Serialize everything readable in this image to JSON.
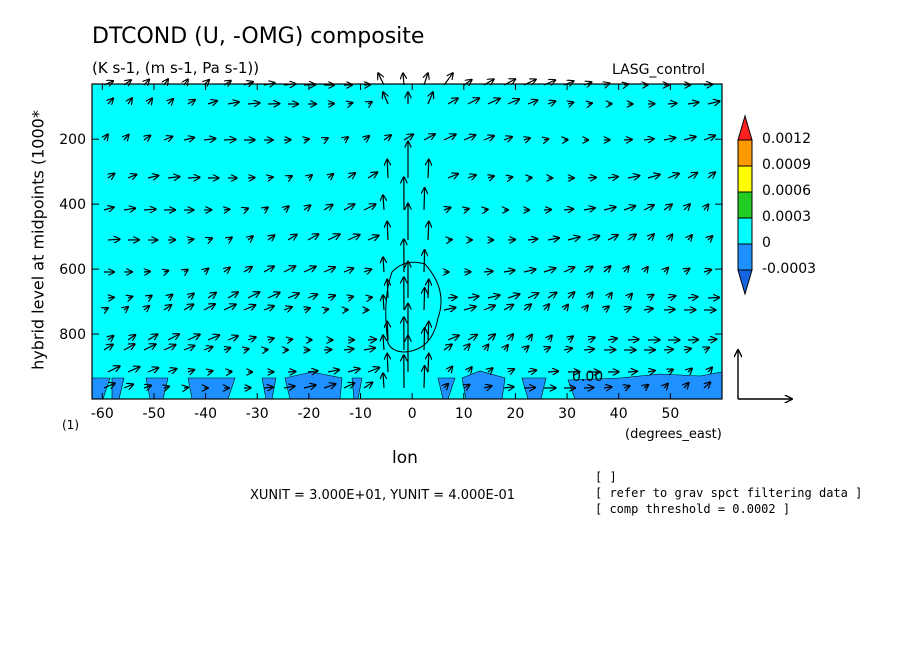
{
  "chart_data": {
    "type": "heatmap",
    "title": "DTCOND (U, -OMG) composite",
    "subtitle": "(K s-1, (m s-1, Pa s-1))",
    "run_label": "LASG_control",
    "xlabel": "lon",
    "xlabel_units": "(degrees_east)",
    "ylabel": "hybrid level at midpoints (1000*",
    "panel_label": "(1)",
    "xlim": [
      -62,
      60
    ],
    "ylim": [
      1000,
      30
    ],
    "x_ticks": [
      "-60",
      "-50",
      "-40",
      "-30",
      "-20",
      "-10",
      "0",
      "10",
      "20",
      "30",
      "40",
      "50"
    ],
    "y_ticks": [
      "200",
      "400",
      "600",
      "800"
    ],
    "colorbar": {
      "labels": [
        "0.0012",
        "0.0009",
        "0.0006",
        "0.0003",
        "0",
        "-0.0003"
      ],
      "colors": [
        "#ff2020",
        "#ff9900",
        "#ffff00",
        "#22cc22",
        "#00ffff",
        "#1e90ff",
        "#1565e0"
      ]
    },
    "background_value_range": "0 to 0.0003",
    "contour_label": "0.00",
    "vector_scale_text": "XUNIT = 3.000E+01, YUNIT = 4.000E-01",
    "notes": [
      "[  ]",
      "[ refer to grav spct filtering data ]",
      "[ comp threshold = 0.0002 ]"
    ]
  }
}
